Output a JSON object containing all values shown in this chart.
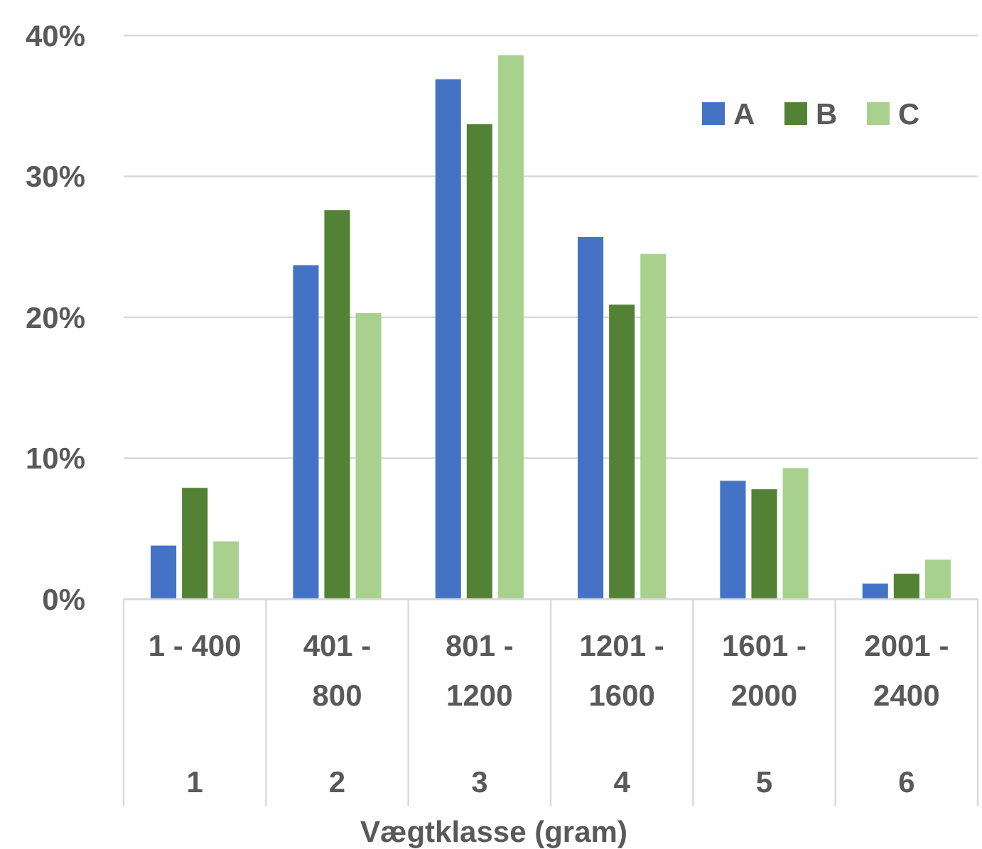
{
  "chart_data": {
    "type": "bar",
    "xlabel": "Vægtklasse (gram)",
    "categories": [
      "1 - 400",
      "401 - 800",
      "801 - 1200",
      "1201 - 1600",
      "1601 - 2000",
      "2001 - 2400"
    ],
    "series": [
      {
        "name": "A",
        "color": "#4472c4",
        "values": [
          3.8,
          23.7,
          36.9,
          25.7,
          8.4,
          1.1
        ]
      },
      {
        "name": "B",
        "color": "#548235",
        "values": [
          7.9,
          27.6,
          33.7,
          20.9,
          7.8,
          1.8
        ]
      },
      {
        "name": "C",
        "color": "#a9d18e",
        "values": [
          4.1,
          20.3,
          38.6,
          24.5,
          9.3,
          2.8
        ]
      }
    ],
    "ylim": [
      0,
      40
    ],
    "yticks": [
      {
        "value": 0,
        "label": "0%"
      },
      {
        "value": 10,
        "label": "10%"
      },
      {
        "value": 20,
        "label": "20%"
      },
      {
        "value": 30,
        "label": "30%"
      },
      {
        "value": 40,
        "label": "40%"
      }
    ],
    "grid": "y",
    "legend": "top right",
    "annotations": [
      "1",
      "2",
      "3",
      "4",
      "5",
      "6"
    ]
  }
}
